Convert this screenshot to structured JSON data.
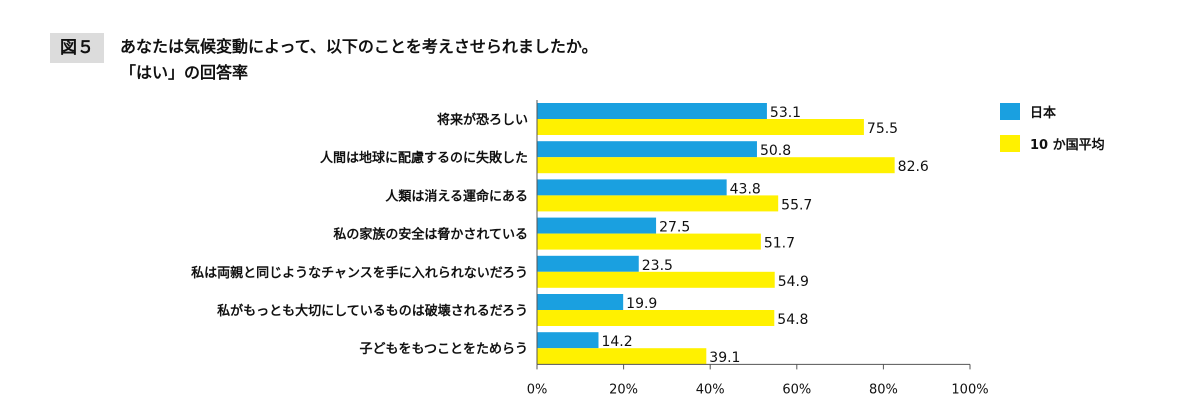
{
  "figure_label": "図５",
  "title_line1": "あなたは気候変動によって、以下のことを考えさせられましたか。",
  "title_line2": "「はい」の回答率",
  "chart_data": {
    "type": "bar",
    "orientation": "horizontal",
    "categories": [
      "将来が恐ろしい",
      "人間は地球に配慮するのに失敗した",
      "人類は消える運命にある",
      "私の家族の安全は脅かされている",
      "私は両親と同じようなチャンスを手に入れられないだろう",
      "私がもっとも大切にしているものは破壊されるだろう",
      "子どもをもつことをためらう"
    ],
    "series": [
      {
        "name": "日本",
        "color": "#1aa0e0",
        "values": [
          53.1,
          50.8,
          43.8,
          27.5,
          23.5,
          19.9,
          14.2
        ]
      },
      {
        "name": "10 か国平均",
        "color": "#fff100",
        "values": [
          75.5,
          82.6,
          55.7,
          51.7,
          54.9,
          54.8,
          39.1
        ]
      }
    ],
    "xlim": [
      0,
      100
    ],
    "xticks": [
      "0%",
      "20%",
      "40%",
      "60%",
      "80%",
      "100%"
    ],
    "grid": false,
    "legend": "top-right"
  }
}
